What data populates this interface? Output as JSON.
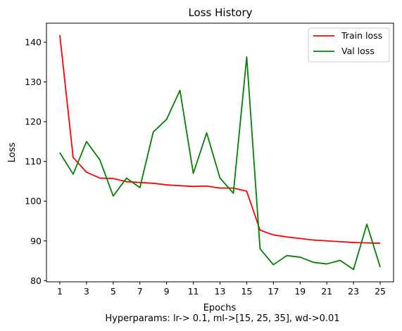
{
  "chart_data": {
    "type": "line",
    "title": "Loss History",
    "xlabel": "Epochs",
    "ylabel": "Loss",
    "caption": "Hyperparams: lr-> 0.1, ml->[15, 25, 35], wd->0.01",
    "x": [
      1,
      2,
      3,
      4,
      5,
      6,
      7,
      8,
      9,
      10,
      11,
      12,
      13,
      14,
      15,
      16,
      17,
      18,
      19,
      20,
      21,
      22,
      23,
      24,
      25
    ],
    "xticks": [
      "1",
      "3",
      "5",
      "7",
      "9",
      "11",
      "13",
      "15",
      "17",
      "19",
      "21",
      "23",
      "25"
    ],
    "yticks": [
      "80",
      "90",
      "100",
      "110",
      "120",
      "130",
      "140"
    ],
    "xlim": [
      0,
      26
    ],
    "ylim": [
      79.7,
      144.8
    ],
    "grid": false,
    "legend_position": "top-right",
    "series": [
      {
        "name": "Train loss",
        "color": "#ff0000",
        "values": [
          141.8,
          111.0,
          107.3,
          105.8,
          105.7,
          104.9,
          104.7,
          104.5,
          104.1,
          103.9,
          103.7,
          103.8,
          103.3,
          103.3,
          102.5,
          92.7,
          91.5,
          91.0,
          90.6,
          90.2,
          90.0,
          89.8,
          89.6,
          89.5,
          89.4
        ]
      },
      {
        "name": "Val loss",
        "color": "#008000",
        "values": [
          112.2,
          106.8,
          115.0,
          110.4,
          101.3,
          105.8,
          103.4,
          117.4,
          120.6,
          127.9,
          107.0,
          117.2,
          105.8,
          102.0,
          136.3,
          88.0,
          84.0,
          86.3,
          85.9,
          84.6,
          84.2,
          85.1,
          82.8,
          94.2,
          83.4
        ]
      }
    ]
  }
}
